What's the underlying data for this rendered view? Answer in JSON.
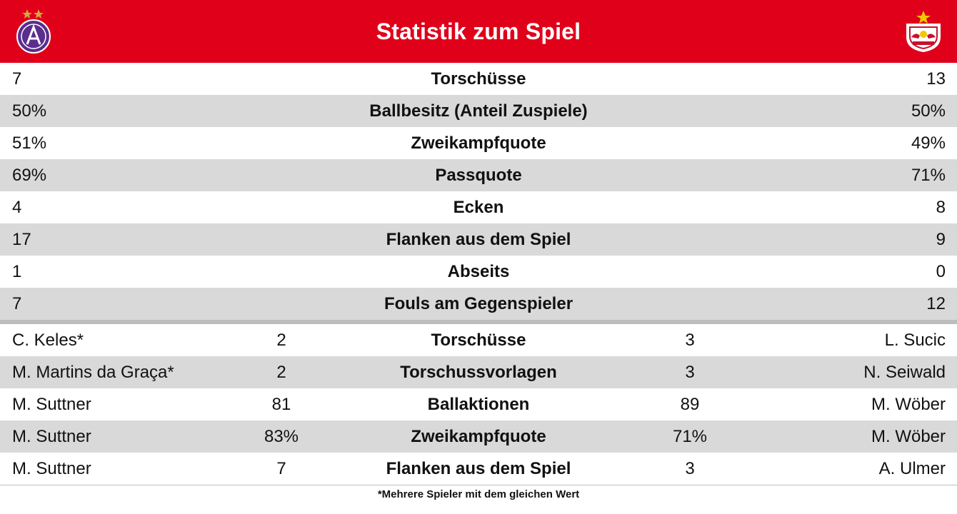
{
  "header": {
    "title": "Statistik zum Spiel",
    "accent_color": "#e0001a",
    "left_logo": "austria-wien-crest-icon",
    "right_logo": "red-bull-salzburg-crest-icon"
  },
  "team_stats": [
    {
      "left": "7",
      "label": "Torschüsse",
      "right": "13"
    },
    {
      "left": "50%",
      "label": "Ballbesitz (Anteil Zuspiele)",
      "right": "50%"
    },
    {
      "left": "51%",
      "label": "Zweikampfquote",
      "right": "49%"
    },
    {
      "left": "69%",
      "label": "Passquote",
      "right": "71%"
    },
    {
      "left": "4",
      "label": "Ecken",
      "right": "8"
    },
    {
      "left": "17",
      "label": "Flanken aus dem Spiel",
      "right": "9"
    },
    {
      "left": "1",
      "label": "Abseits",
      "right": "0"
    },
    {
      "left": "7",
      "label": "Fouls am Gegenspieler",
      "right": "12"
    }
  ],
  "player_stats": [
    {
      "left_player": "C. Keles*",
      "left_value": "2",
      "label": "Torschüsse",
      "right_value": "3",
      "right_player": "L. Sucic"
    },
    {
      "left_player": "M. Martins da Graça*",
      "left_value": "2",
      "label": "Torschussvorlagen",
      "right_value": "3",
      "right_player": "N. Seiwald"
    },
    {
      "left_player": "M. Suttner",
      "left_value": "81",
      "label": "Ballaktionen",
      "right_value": "89",
      "right_player": "M. Wöber"
    },
    {
      "left_player": "M. Suttner",
      "left_value": "83%",
      "label": "Zweikampfquote",
      "right_value": "71%",
      "right_player": "M. Wöber"
    },
    {
      "left_player": "M. Suttner",
      "left_value": "7",
      "label": "Flanken aus dem Spiel",
      "right_value": "3",
      "right_player": "A. Ulmer"
    }
  ],
  "footnote": "*Mehrere Spieler mit dem gleichen Wert"
}
